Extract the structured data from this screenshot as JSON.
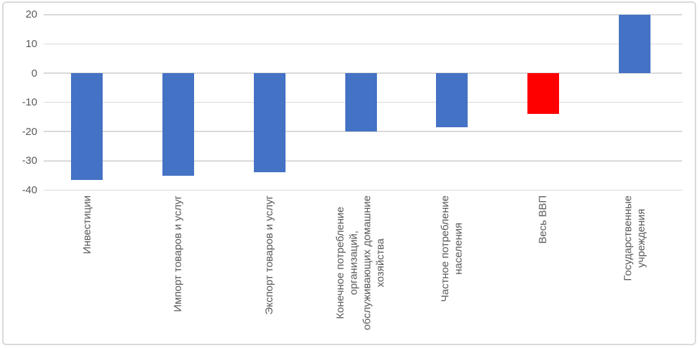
{
  "chart_data": {
    "type": "bar",
    "title": "",
    "legend": "none",
    "grid": true,
    "categories": [
      "Инвестиции",
      "Импорт товаров и услуг",
      "Экспорт товаров и услуг",
      "Конечное потребление организаций, обслуживающих домашние хозяйства",
      "Частное потребление населения",
      "Весь ВВП",
      "Государственные учреждения"
    ],
    "category_lines": [
      [
        "Инвестиции"
      ],
      [
        "Импорт товаров и услуг"
      ],
      [
        "Экспорт товаров и услуг"
      ],
      [
        "Конечное потребление",
        "организаций,",
        "обслуживающих домашние",
        "хозяйства"
      ],
      [
        "Частное потребление",
        "населения"
      ],
      [
        "Весь ВВП"
      ],
      [
        "Государственные",
        "учреждения"
      ]
    ],
    "values": [
      -36.5,
      -35,
      -34,
      -20,
      -18.5,
      -14,
      20
    ],
    "bar_colors": [
      "#4472C4",
      "#4472C4",
      "#4472C4",
      "#4472C4",
      "#4472C4",
      "#FF0000",
      "#4472C4"
    ],
    "default_bar_color": "#4472C4",
    "highlight_bar_color": "#FF0000",
    "xlabel": "",
    "ylabel": "",
    "y_ticks": [
      20,
      10,
      0,
      -10,
      -20,
      -30,
      -40
    ],
    "ylim": [
      -40,
      20
    ],
    "colors": {
      "gridline": "#D9D9D9",
      "chart_border": "#D9D9D9",
      "tick_text": "#595959",
      "category_text": "#595959",
      "background": "#FFFFFF"
    }
  }
}
